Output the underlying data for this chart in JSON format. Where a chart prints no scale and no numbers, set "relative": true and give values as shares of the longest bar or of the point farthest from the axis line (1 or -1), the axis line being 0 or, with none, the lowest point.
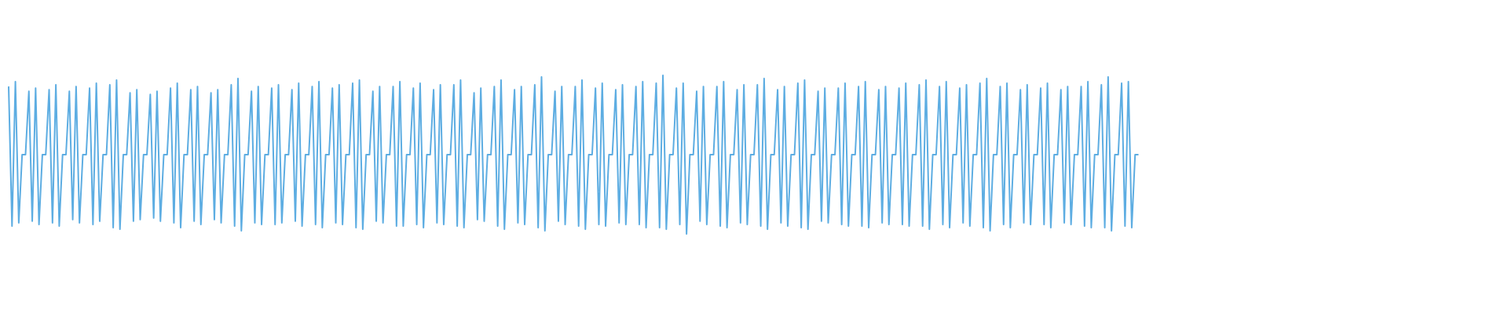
{
  "chart_data": {
    "type": "line",
    "relative": true,
    "categories": [
      null,
      null,
      null,
      null,
      null,
      null,
      null,
      null,
      null,
      null,
      null,
      null,
      null,
      null,
      null,
      null,
      null,
      null,
      null,
      null,
      null,
      null,
      null,
      null,
      null,
      null,
      null,
      null,
      null,
      null,
      null,
      null,
      null,
      null,
      null,
      null,
      null,
      null,
      null,
      null,
      null,
      null,
      null,
      null,
      null,
      null,
      null,
      null,
      null,
      null,
      null,
      null,
      null,
      null,
      null,
      null,
      null,
      null,
      null,
      null,
      null,
      null,
      null,
      null,
      null,
      null,
      null,
      null,
      null,
      null,
      null,
      null,
      null,
      null,
      null,
      null,
      null,
      null,
      null,
      null,
      null,
      null,
      null,
      null,
      null,
      null,
      null,
      null,
      null,
      null,
      null,
      null,
      null,
      null,
      null,
      null,
      null,
      null,
      null,
      null,
      null,
      null,
      null,
      null,
      null,
      null,
      null,
      null,
      null,
      null,
      null,
      null,
      null,
      null,
      null,
      null,
      null,
      null,
      null,
      null,
      null,
      null,
      null,
      null,
      null,
      null,
      null,
      null,
      null,
      null,
      null,
      null,
      null,
      null,
      null,
      null,
      null,
      null,
      null,
      null,
      null,
      null,
      null,
      null,
      null,
      null,
      null,
      null,
      null,
      null,
      null,
      null,
      null,
      null,
      null,
      null,
      null,
      null,
      null,
      null,
      null,
      null,
      null,
      null,
      null,
      null,
      null,
      null,
      null,
      null,
      null,
      null,
      null,
      null,
      null,
      null,
      null,
      null,
      null,
      null,
      null,
      null,
      null,
      null,
      null,
      null,
      null,
      null,
      null,
      null,
      null,
      null,
      null,
      null,
      null,
      null,
      null,
      null,
      null,
      null,
      null,
      null,
      null,
      null,
      null,
      null,
      null,
      null,
      null,
      null,
      null,
      null,
      null,
      null,
      null,
      null,
      null,
      null,
      null,
      null,
      null,
      null,
      null,
      null,
      null,
      null,
      null,
      null,
      null,
      null,
      null,
      null,
      null,
      null,
      null,
      null,
      null,
      null,
      null,
      null,
      null,
      null,
      null,
      null,
      null,
      null,
      null,
      null,
      null,
      null,
      null,
      null,
      null,
      null,
      null,
      null,
      null,
      null,
      null,
      null,
      null,
      null,
      null,
      null,
      null,
      null,
      null,
      null,
      null,
      null,
      null,
      null,
      null,
      null,
      null,
      null,
      null,
      null,
      null,
      null,
      null,
      null,
      null,
      null,
      null,
      null,
      null,
      null,
      null,
      null,
      null,
      null,
      null,
      null,
      null,
      null,
      null,
      null,
      null,
      null,
      null,
      null,
      null,
      null,
      null,
      null,
      null,
      null,
      null,
      null,
      null,
      null,
      null,
      null,
      null,
      null,
      null,
      null,
      null,
      null,
      null,
      null,
      null,
      null,
      null,
      null,
      null,
      null,
      null,
      null,
      null,
      null,
      null,
      null,
      null,
      null,
      null,
      null,
      null,
      null,
      null,
      null,
      null,
      null,
      null,
      null,
      null,
      null,
      null,
      null,
      null,
      null,
      null,
      null,
      null,
      null,
      null,
      null,
      null,
      null,
      null,
      null,
      null,
      null,
      null,
      null,
      null,
      null,
      null,
      null,
      null,
      null,
      null,
      null,
      null,
      null,
      null,
      null,
      null,
      null,
      null,
      null,
      null,
      null,
      null,
      null,
      null,
      null,
      null,
      null,
      null,
      null,
      null,
      null,
      null,
      null,
      null,
      null,
      null,
      null,
      null,
      null,
      null,
      null,
      null,
      null,
      null,
      null,
      null,
      null,
      null,
      null,
      null,
      null,
      null,
      null,
      null,
      null,
      null,
      null,
      null,
      null,
      null,
      null,
      null,
      null,
      null,
      null,
      null,
      null,
      null,
      null,
      null,
      null,
      null,
      null,
      null,
      null,
      null,
      null,
      null,
      null,
      null
    ],
    "series": [
      {
        "color": "#5dade2",
        "values": [
          0.93,
          0.05,
          0.96,
          0.07,
          0.5,
          0.5,
          0.9,
          0.08,
          0.92,
          0.06,
          0.5,
          0.5,
          0.91,
          0.07,
          0.94,
          0.05,
          0.5,
          0.5,
          0.9,
          0.09,
          0.93,
          0.07,
          0.5,
          0.5,
          0.92,
          0.06,
          0.95,
          0.08,
          0.5,
          0.5,
          0.94,
          0.04,
          0.97,
          0.03,
          0.5,
          0.5,
          0.89,
          0.08,
          0.91,
          0.09,
          0.5,
          0.5,
          0.88,
          0.1,
          0.9,
          0.08,
          0.5,
          0.5,
          0.92,
          0.07,
          0.95,
          0.04,
          0.5,
          0.5,
          0.91,
          0.08,
          0.93,
          0.06,
          0.5,
          0.5,
          0.89,
          0.09,
          0.91,
          0.07,
          0.5,
          0.5,
          0.94,
          0.05,
          0.98,
          0.02,
          0.5,
          0.5,
          0.9,
          0.07,
          0.93,
          0.06,
          0.5,
          0.5,
          0.92,
          0.06,
          0.94,
          0.07,
          0.5,
          0.5,
          0.91,
          0.08,
          0.95,
          0.05,
          0.5,
          0.5,
          0.93,
          0.06,
          0.96,
          0.04,
          0.5,
          0.5,
          0.92,
          0.07,
          0.94,
          0.06,
          0.5,
          0.5,
          0.95,
          0.04,
          0.97,
          0.03,
          0.5,
          0.5,
          0.9,
          0.08,
          0.93,
          0.07,
          0.5,
          0.5,
          0.93,
          0.05,
          0.96,
          0.05,
          0.5,
          0.5,
          0.92,
          0.06,
          0.95,
          0.04,
          0.5,
          0.5,
          0.91,
          0.07,
          0.94,
          0.06,
          0.5,
          0.5,
          0.94,
          0.05,
          0.97,
          0.04,
          0.5,
          0.5,
          0.89,
          0.09,
          0.92,
          0.08,
          0.5,
          0.5,
          0.93,
          0.05,
          0.97,
          0.03,
          0.5,
          0.5,
          0.91,
          0.07,
          0.93,
          0.06,
          0.5,
          0.5,
          0.94,
          0.04,
          0.99,
          0.02,
          0.5,
          0.5,
          0.9,
          0.08,
          0.93,
          0.06,
          0.5,
          0.5,
          0.93,
          0.05,
          0.97,
          0.03,
          0.5,
          0.5,
          0.92,
          0.06,
          0.95,
          0.05,
          0.5,
          0.5,
          0.91,
          0.07,
          0.94,
          0.06,
          0.5,
          0.5,
          0.93,
          0.06,
          0.96,
          0.04,
          0.5,
          0.5,
          0.95,
          0.04,
          1,
          0.03,
          0.5,
          0.5,
          0.92,
          0.06,
          0.95,
          0,
          0.5,
          0.5,
          0.9,
          0.08,
          0.93,
          0.06,
          0.5,
          0.5,
          0.93,
          0.05,
          0.96,
          0.04,
          0.5,
          0.5,
          0.91,
          0.07,
          0.94,
          0.06,
          0.5,
          0.5,
          0.94,
          0.05,
          0.98,
          0.03,
          0.5,
          0.5,
          0.91,
          0.07,
          0.93,
          0.05,
          0.5,
          0.5,
          0.95,
          0.04,
          0.97,
          0.03,
          0.5,
          0.5,
          0.9,
          0.08,
          0.92,
          0.07,
          0.5,
          0.5,
          0.92,
          0.06,
          0.95,
          0.05,
          0.5,
          0.5,
          0.93,
          0.05,
          0.96,
          0.04,
          0.5,
          0.5,
          0.91,
          0.07,
          0.93,
          0.06,
          0.5,
          0.5,
          0.92,
          0.06,
          0.95,
          0.05,
          0.5,
          0.5,
          0.94,
          0.05,
          0.97,
          0.03,
          0.5,
          0.5,
          0.93,
          0.06,
          0.96,
          0.04,
          0.5,
          0.5,
          0.92,
          0.07,
          0.94,
          0.05,
          0.5,
          0.5,
          0.95,
          0.04,
          0.98,
          0.02,
          0.5,
          0.5,
          0.93,
          0.06,
          0.95,
          0.04,
          0.5,
          0.5,
          0.91,
          0.07,
          0.94,
          0.06,
          0.5,
          0.5,
          0.92,
          0.06,
          0.95,
          0.04,
          0.5,
          0.5,
          0.91,
          0.07,
          0.93,
          0.06,
          0.5,
          0.5,
          0.93,
          0.05,
          0.96,
          0.04,
          0.5,
          0.5,
          0.94,
          0.04,
          0.99,
          0.02,
          0.5,
          0.5,
          0.95,
          0.05,
          0.96,
          0.04,
          0.5,
          0.5,
          null,
          null,
          null,
          null,
          null,
          null,
          null,
          null,
          null,
          null,
          null,
          null,
          null,
          null,
          null,
          null,
          null,
          null,
          null,
          null,
          null,
          null,
          null,
          null,
          null,
          null,
          null,
          null,
          null,
          null,
          null,
          null,
          null,
          null,
          null,
          null,
          null,
          null,
          null,
          null,
          null,
          null,
          null,
          null,
          null,
          null,
          null,
          null,
          null,
          null,
          null,
          null,
          null,
          null,
          null,
          null,
          null,
          null,
          null,
          null,
          null,
          null,
          null,
          null,
          null,
          null,
          null,
          null,
          null,
          null,
          null,
          null,
          null,
          null,
          null,
          null,
          null,
          null,
          null,
          null,
          null,
          null,
          null,
          null,
          null,
          null,
          null,
          null,
          null,
          null,
          null,
          null,
          null,
          null,
          null,
          null,
          null,
          null,
          null,
          null,
          null,
          null,
          null,
          null,
          null,
          null,
          null
        ]
      }
    ]
  }
}
